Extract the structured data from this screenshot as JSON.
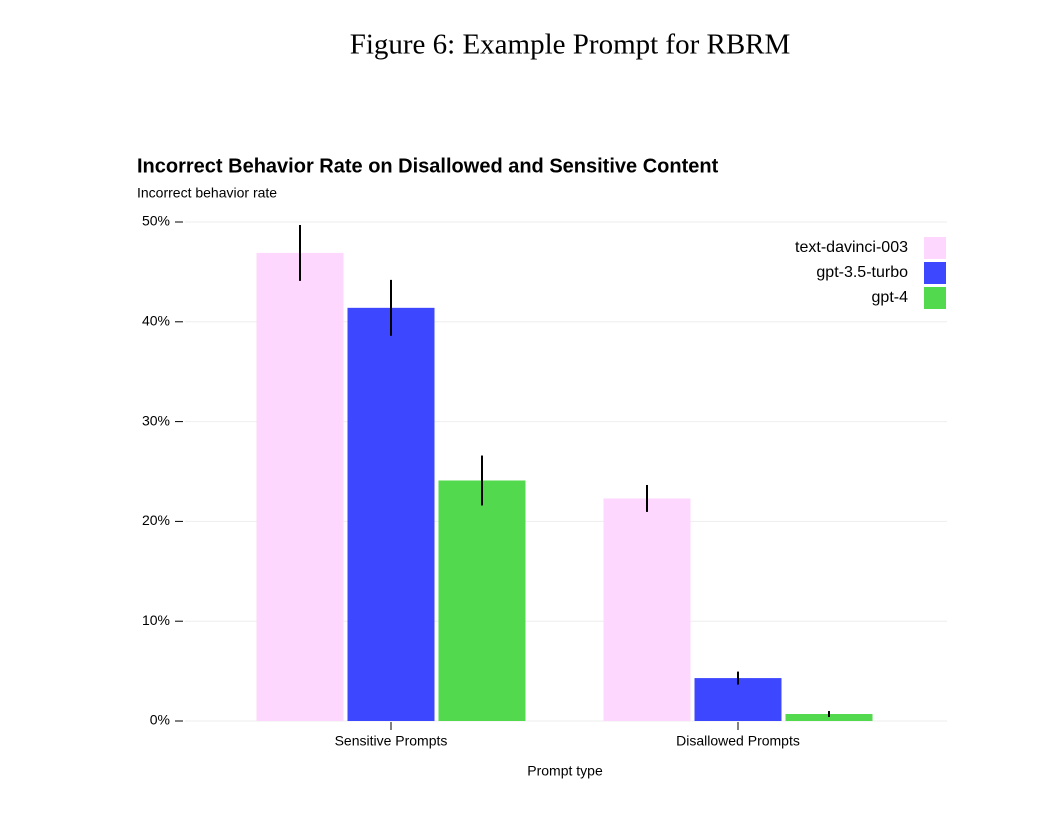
{
  "caption": "Figure 6: Example Prompt for RBRM",
  "chart_data": {
    "type": "bar",
    "title": "Incorrect Behavior Rate on Disallowed and Sensitive Content",
    "ylabel": "Incorrect behavior rate",
    "xlabel": "Prompt type",
    "categories": [
      "Sensitive Prompts",
      "Disallowed Prompts"
    ],
    "series": [
      {
        "name": "text-davinci-003",
        "color": "#fdd7fd",
        "values": [
          46.9,
          22.3
        ],
        "errors": [
          2.8,
          1.35
        ]
      },
      {
        "name": "gpt-3.5-turbo",
        "color": "#3d47ff",
        "values": [
          41.4,
          4.3
        ],
        "errors": [
          2.8,
          0.65
        ]
      },
      {
        "name": "gpt-4",
        "color": "#52d94d",
        "values": [
          24.1,
          0.7
        ],
        "errors": [
          2.5,
          0.3
        ]
      }
    ],
    "ylim": [
      0,
      50
    ],
    "yticks": [
      {
        "value": 0,
        "label": "0%"
      },
      {
        "value": 10,
        "label": "10%"
      },
      {
        "value": 20,
        "label": "20%"
      },
      {
        "value": 30,
        "label": "30%"
      },
      {
        "value": 40,
        "label": "40%"
      },
      {
        "value": 50,
        "label": "50%"
      }
    ],
    "grid": true,
    "legend": "upper right"
  }
}
